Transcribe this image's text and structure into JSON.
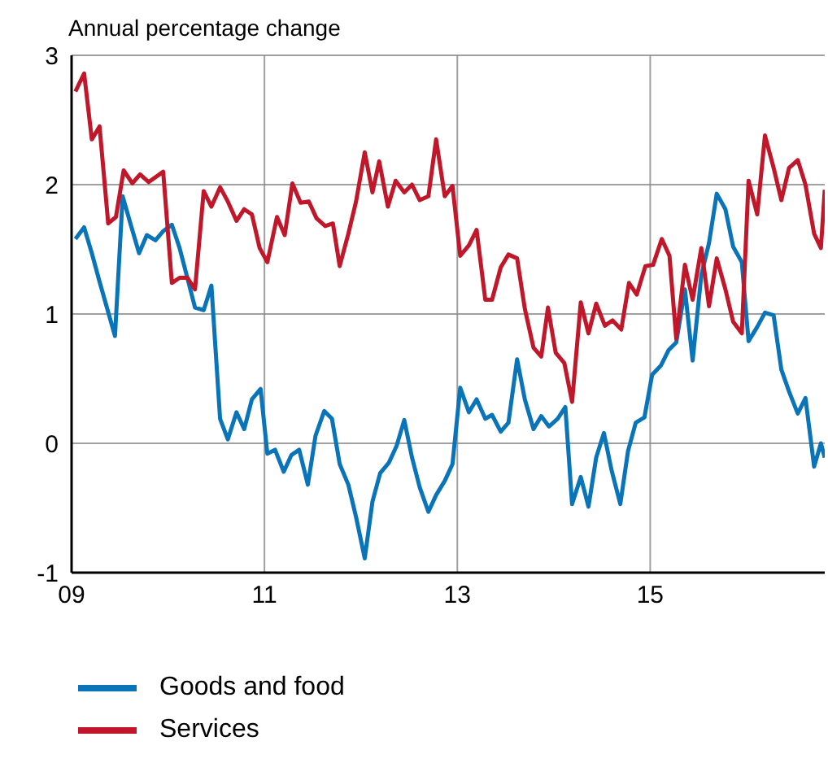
{
  "chart_data": {
    "type": "line",
    "ylabel": "Annual percentage change",
    "xlim": [
      9,
      16.81
    ],
    "xticks": [
      {
        "value": 9,
        "label": "09"
      },
      {
        "value": 11,
        "label": "11"
      },
      {
        "value": 13,
        "label": "13"
      },
      {
        "value": 15,
        "label": "15"
      }
    ],
    "ylim": [
      -1,
      3
    ],
    "yticks": [
      -1,
      0,
      1,
      2,
      3
    ],
    "grid": true,
    "legend": "bottom",
    "marker": "none",
    "line_style": "solid",
    "series": [
      {
        "name": "Goods and food",
        "color": "#0a74b9",
        "x": [
          9.04,
          9.13,
          9.21,
          9.29,
          9.45,
          9.53,
          9.61,
          9.7,
          9.78,
          9.87,
          9.95,
          10.04,
          10.12,
          10.2,
          10.28,
          10.37,
          10.45,
          10.54,
          10.62,
          10.71,
          10.79,
          10.87,
          10.96,
          11.03,
          11.11,
          11.2,
          11.28,
          11.36,
          11.45,
          11.53,
          11.62,
          11.7,
          11.78,
          11.87,
          11.95,
          12.04,
          12.12,
          12.2,
          12.29,
          12.37,
          12.45,
          12.53,
          12.61,
          12.7,
          12.78,
          12.87,
          12.95,
          13.03,
          13.12,
          13.2,
          13.29,
          13.36,
          13.45,
          13.53,
          13.62,
          13.7,
          13.79,
          13.87,
          13.95,
          14.04,
          14.12,
          14.19,
          14.28,
          14.36,
          14.44,
          14.52,
          14.6,
          14.69,
          14.77,
          14.85,
          14.94,
          15.02,
          15.11,
          15.19,
          15.27,
          15.36,
          15.44,
          15.53,
          15.61,
          15.69,
          15.78,
          15.86,
          15.95,
          16.02,
          16.11,
          16.19,
          16.28,
          16.36,
          16.44,
          16.53,
          16.61,
          16.7,
          16.77,
          16.81
        ],
        "values": [
          1.58,
          1.67,
          1.47,
          1.25,
          0.83,
          1.91,
          1.7,
          1.47,
          1.61,
          1.57,
          1.64,
          1.69,
          1.51,
          1.28,
          1.05,
          1.03,
          1.22,
          0.19,
          0.03,
          0.24,
          0.11,
          0.34,
          0.42,
          -0.08,
          -0.05,
          -0.22,
          -0.09,
          -0.05,
          -0.32,
          0.06,
          0.25,
          0.19,
          -0.16,
          -0.32,
          -0.57,
          -0.89,
          -0.45,
          -0.23,
          -0.15,
          -0.02,
          0.18,
          -0.11,
          -0.34,
          -0.53,
          -0.4,
          -0.29,
          -0.16,
          0.43,
          0.24,
          0.34,
          0.19,
          0.22,
          0.09,
          0.16,
          0.65,
          0.34,
          0.11,
          0.21,
          0.13,
          0.19,
          0.28,
          -0.47,
          -0.26,
          -0.49,
          -0.11,
          0.08,
          -0.21,
          -0.47,
          -0.06,
          0.16,
          0.2,
          0.53,
          0.6,
          0.72,
          0.78,
          1.19,
          0.64,
          1.3,
          1.55,
          1.93,
          1.81,
          1.52,
          1.4,
          0.79,
          0.9,
          1.01,
          0.99,
          0.57,
          0.4,
          0.23,
          0.35,
          -0.18,
          0,
          -0.11
        ]
      },
      {
        "name": "Services",
        "color": "#c0182a",
        "x": [
          9.04,
          9.13,
          9.21,
          9.29,
          9.38,
          9.46,
          9.54,
          9.63,
          9.71,
          9.8,
          9.95,
          10.04,
          10.12,
          10.2,
          10.28,
          10.37,
          10.45,
          10.54,
          10.62,
          10.71,
          10.79,
          10.87,
          10.95,
          11.03,
          11.13,
          11.21,
          11.29,
          11.375,
          11.46,
          11.54,
          11.63,
          11.71,
          11.78,
          11.87,
          11.95,
          12.04,
          12.12,
          12.19,
          12.28,
          12.36,
          12.45,
          12.53,
          12.61,
          12.7,
          12.78,
          12.87,
          12.95,
          13.03,
          13.12,
          13.2,
          13.29,
          13.36,
          13.45,
          13.53,
          13.62,
          13.7,
          13.79,
          13.87,
          13.94,
          14.02,
          14.11,
          14.19,
          14.28,
          14.36,
          14.44,
          14.53,
          14.61,
          14.7,
          14.78,
          14.86,
          14.95,
          15.03,
          15.12,
          15.2,
          15.27,
          15.36,
          15.44,
          15.53,
          15.61,
          15.69,
          15.78,
          15.86,
          15.95,
          16.02,
          16.11,
          16.19,
          16.28,
          16.36,
          16.44,
          16.53,
          16.61,
          16.7,
          16.77,
          16.81
        ],
        "values": [
          2.72,
          2.86,
          2.35,
          2.45,
          1.7,
          1.75,
          2.11,
          2.01,
          2.08,
          2.02,
          2.1,
          1.24,
          1.28,
          1.28,
          1.19,
          1.95,
          1.83,
          1.98,
          1.87,
          1.72,
          1.81,
          1.77,
          1.51,
          1.4,
          1.75,
          1.61,
          2.01,
          1.86,
          1.87,
          1.74,
          1.68,
          1.7,
          1.37,
          1.62,
          1.87,
          2.25,
          1.94,
          2.18,
          1.83,
          2.03,
          1.94,
          2,
          1.88,
          1.91,
          2.35,
          1.91,
          1.99,
          1.45,
          1.53,
          1.65,
          1.11,
          1.11,
          1.36,
          1.46,
          1.43,
          1.04,
          0.74,
          0.67,
          1.05,
          0.7,
          0.62,
          0.32,
          1.09,
          0.85,
          1.08,
          0.91,
          0.95,
          0.88,
          1.24,
          1.15,
          1.37,
          1.38,
          1.58,
          1.45,
          0.81,
          1.38,
          1.11,
          1.51,
          1.06,
          1.43,
          1.19,
          0.94,
          0.85,
          2.03,
          1.77,
          2.38,
          2.13,
          1.88,
          2.13,
          2.19,
          2,
          1.62,
          1.51,
          1.96
        ]
      }
    ]
  }
}
